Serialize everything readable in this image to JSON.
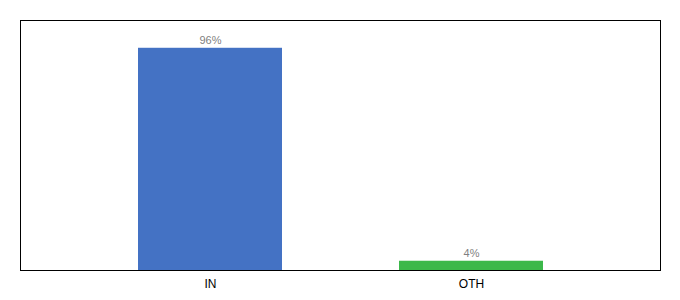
{
  "chart_data": {
    "type": "bar",
    "categories": [
      "IN",
      "OTH"
    ],
    "values": [
      96,
      4
    ],
    "value_labels": [
      "96%",
      "4%"
    ],
    "colors": [
      "#4472C4",
      "#3CB84A"
    ],
    "ylim": [
      0,
      108
    ],
    "data_labels": true,
    "tick_labels": "x",
    "grid": false
  }
}
